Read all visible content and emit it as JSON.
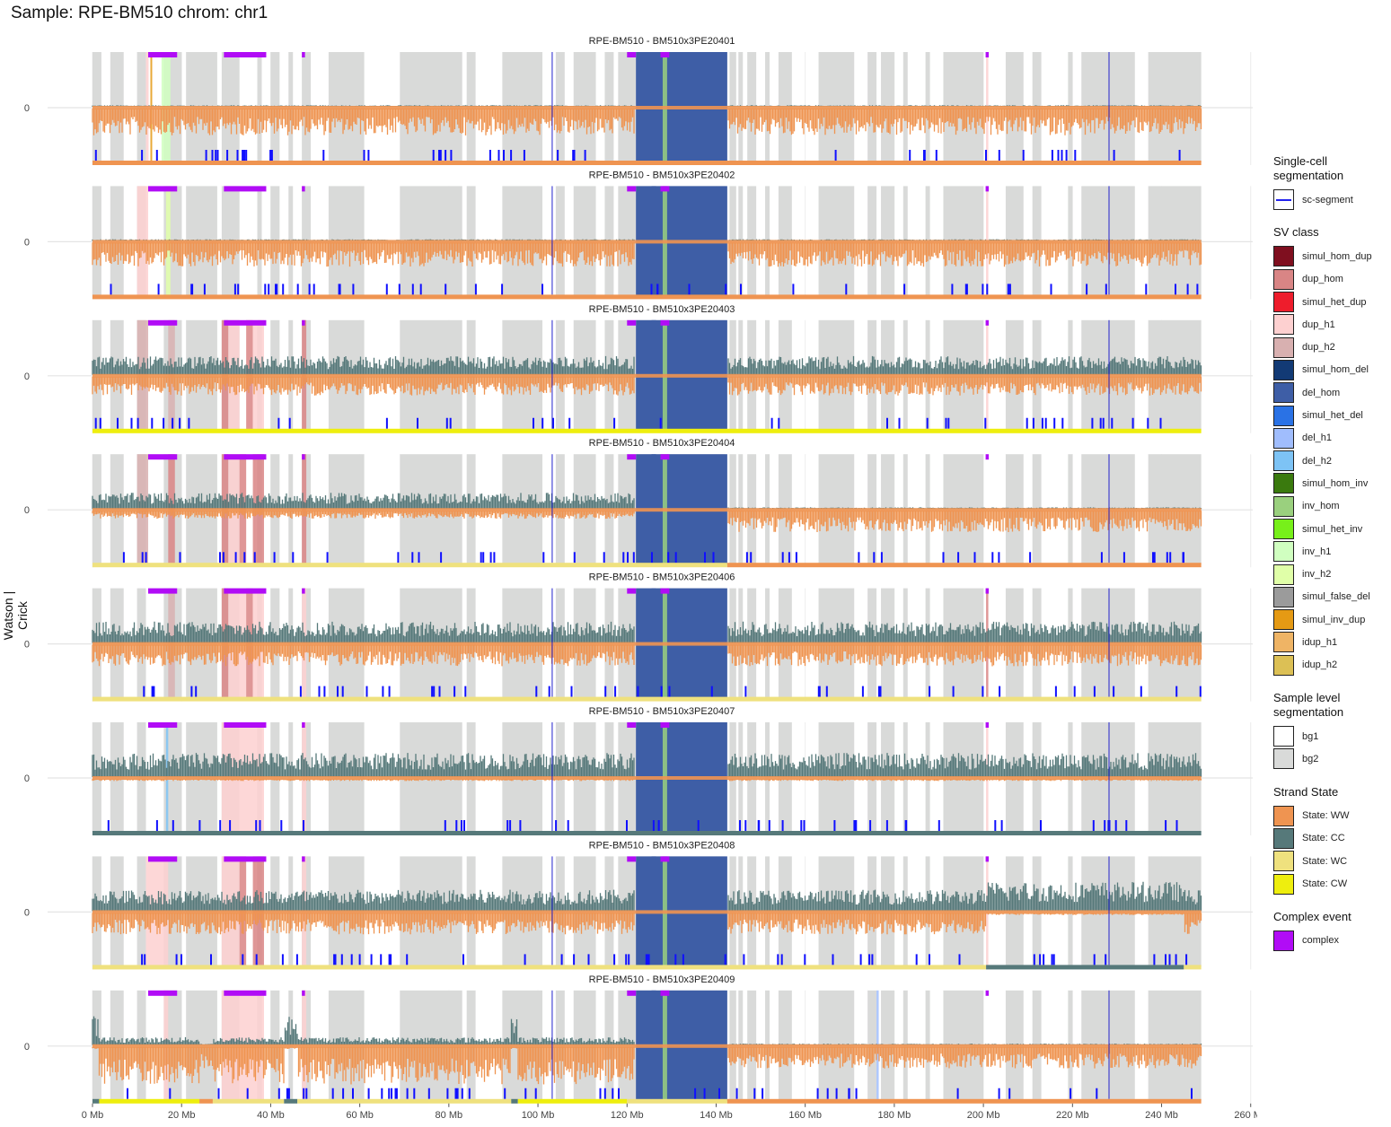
{
  "title": "Sample: RPE-BM510 chrom: chr1",
  "y_axis_label": "Watson | Crick",
  "chart_data": {
    "type": "strandseq-sv-panels",
    "chromosome": "chr1",
    "sample": "RPE-BM510",
    "x_unit": "Mb",
    "xlim": [
      0,
      260
    ],
    "chrom_end": 248.9,
    "x_ticks": [
      0,
      20,
      40,
      60,
      80,
      100,
      120,
      140,
      160,
      180,
      200,
      220,
      240,
      260
    ],
    "x_tick_labels": [
      "0 Mb",
      "20 Mb",
      "40 Mb",
      "60 Mb",
      "80 Mb",
      "100 Mb",
      "120 Mb",
      "140 Mb",
      "160 Mb",
      "180 Mb",
      "200 Mb",
      "220 Mb",
      "240 Mb",
      "260 Mb"
    ],
    "y_tick_labels": [
      "0"
    ],
    "bg_segments": [
      [
        0,
        2
      ],
      [
        4,
        7
      ],
      [
        10,
        12
      ],
      [
        16,
        20
      ],
      [
        21,
        28
      ],
      [
        29,
        33
      ],
      [
        37,
        38
      ],
      [
        40,
        42
      ],
      [
        44,
        45
      ],
      [
        47,
        49
      ],
      [
        53,
        61
      ],
      [
        69,
        83
      ],
      [
        84,
        86
      ],
      [
        92,
        101
      ],
      [
        104,
        106
      ],
      [
        108,
        113
      ],
      [
        115,
        117
      ],
      [
        118,
        142
      ],
      [
        143,
        144.5
      ],
      [
        145,
        146
      ],
      [
        147,
        149
      ],
      [
        151,
        152
      ],
      [
        154,
        157
      ],
      [
        163,
        171
      ],
      [
        174,
        176
      ],
      [
        177,
        180
      ],
      [
        182,
        183
      ],
      [
        187,
        188
      ],
      [
        191,
        200
      ],
      [
        205,
        209
      ],
      [
        211,
        213
      ],
      [
        219,
        220
      ],
      [
        222,
        234
      ],
      [
        237,
        248.9
      ]
    ],
    "sv_class_colors": {
      "simul_hom_dup": "#7f0f1f",
      "dup_hom": "#d98585",
      "simul_het_dup": "#ee1d2c",
      "dup_h1": "#fdd0d0",
      "dup_h2": "#d8b0b0",
      "simul_hom_del": "#123a75",
      "del_hom": "#3e5ea6",
      "simul_het_del": "#2a72e5",
      "del_h1": "#a0bdfd",
      "del_h2": "#7dc3f5",
      "simul_hom_inv": "#3a7a0e",
      "inv_hom": "#9ad07e",
      "simul_het_inv": "#77f01a",
      "inv_h1": "#d0ffc0",
      "inv_h2": "#e0ffa8",
      "simul_false_del": "#9b9b9b",
      "simul_inv_dup": "#e59a14",
      "idup_h1": "#efb465",
      "idup_h2": "#dcc055"
    },
    "strand_state_colors": {
      "WW": "#ef9451",
      "CC": "#56797a",
      "WC": "#efe17e",
      "CW": "#eeee0e"
    },
    "complex_color": "#b10cf6",
    "complex_segments": [
      [
        12.5,
        19
      ],
      [
        29.5,
        39
      ],
      [
        47,
        47.7
      ],
      [
        120,
        122
      ],
      [
        127.5,
        129.5
      ],
      [
        200.5,
        201.2
      ]
    ],
    "global_sv": [
      {
        "cls": "del_hom",
        "start": 122,
        "end": 142.5
      },
      {
        "cls": "del_hom",
        "start": 125.5,
        "end": 126.5
      },
      {
        "cls": "inv_hom",
        "start": 128,
        "end": 129
      }
    ],
    "cells": [
      {
        "title": "RPE-BM510 - BM510x3PE20401",
        "watson": 0.03,
        "crick": 0.5,
        "strand_segments": [
          [
            "WW",
            0,
            248.9
          ]
        ],
        "sv": [
          {
            "cls": "dup_h1",
            "start": 12,
            "end": 12.6
          },
          {
            "cls": "inv_h1",
            "start": 15.5,
            "end": 17.5
          },
          {
            "cls": "simul_inv_dup",
            "start": 13,
            "end": 13.4
          },
          {
            "cls": "dup_h1",
            "start": 200.6,
            "end": 201.1
          }
        ]
      },
      {
        "title": "RPE-BM510 - BM510x3PE20402",
        "watson": 0.03,
        "crick": 0.45,
        "strand_segments": [
          [
            "WW",
            0,
            248.9
          ]
        ],
        "sv": [
          {
            "cls": "dup_h1",
            "start": 10,
            "end": 12.5
          },
          {
            "cls": "inv_h2",
            "start": 16.5,
            "end": 17.5
          },
          {
            "cls": "dup_h1",
            "start": 200.6,
            "end": 201.1
          }
        ]
      },
      {
        "title": "RPE-BM510 - BM510x3PE20403",
        "watson": 0.35,
        "crick": 0.35,
        "strand_segments": [
          [
            "CW",
            0,
            248.9
          ]
        ],
        "sv": [
          {
            "cls": "dup_h2",
            "start": 10,
            "end": 12.5
          },
          {
            "cls": "dup_h2",
            "start": 17,
            "end": 18.5
          },
          {
            "cls": "dup_hom",
            "start": 29,
            "end": 30.5
          },
          {
            "cls": "dup_h1",
            "start": 30.5,
            "end": 33
          },
          {
            "cls": "dup_hom",
            "start": 34.5,
            "end": 36
          },
          {
            "cls": "dup_h1",
            "start": 36,
            "end": 38.5
          },
          {
            "cls": "dup_hom",
            "start": 47,
            "end": 48
          },
          {
            "cls": "dup_h1",
            "start": 200.6,
            "end": 201.1
          }
        ]
      },
      {
        "title": "RPE-BM510 - BM510x3PE20404",
        "watson": 0.3,
        "crick": 0.15,
        "strand_segments": [
          [
            "WC",
            0,
            142.5
          ],
          [
            "WW",
            142.5,
            248.9
          ]
        ],
        "sv": [
          {
            "cls": "dup_h2",
            "start": 10,
            "end": 12.5
          },
          {
            "cls": "dup_hom",
            "start": 17,
            "end": 18.5
          },
          {
            "cls": "dup_hom",
            "start": 29,
            "end": 30.5
          },
          {
            "cls": "dup_h1",
            "start": 30.5,
            "end": 33
          },
          {
            "cls": "dup_hom",
            "start": 33,
            "end": 34.5
          },
          {
            "cls": "dup_hom",
            "start": 36,
            "end": 38.5
          },
          {
            "cls": "dup_hom",
            "start": 47,
            "end": 48
          }
        ]
      },
      {
        "title": "RPE-BM510 - BM510x3PE20406",
        "watson": 0.4,
        "crick": 0.4,
        "strand_segments": [
          [
            "WC",
            0,
            248.9
          ]
        ],
        "sv": [
          {
            "cls": "dup_h2",
            "start": 17,
            "end": 18.5
          },
          {
            "cls": "dup_hom",
            "start": 29,
            "end": 30.5
          },
          {
            "cls": "dup_h1",
            "start": 30.5,
            "end": 34.5
          },
          {
            "cls": "dup_hom",
            "start": 34.5,
            "end": 36
          },
          {
            "cls": "dup_h1",
            "start": 36,
            "end": 38.5
          },
          {
            "cls": "dup_h1",
            "start": 47,
            "end": 48
          },
          {
            "cls": "dup_hom",
            "start": 200.6,
            "end": 201.1
          }
        ]
      },
      {
        "title": "RPE-BM510 - BM510x3PE20407",
        "watson": 0.45,
        "crick": 0.04,
        "strand_segments": [
          [
            "CC",
            0,
            248.9
          ]
        ],
        "sv": [
          {
            "cls": "del_h2",
            "start": 16.5,
            "end": 17
          },
          {
            "cls": "dup_h1",
            "start": 29,
            "end": 38.5
          },
          {
            "cls": "dup_h1",
            "start": 47,
            "end": 48
          },
          {
            "cls": "dup_h1",
            "start": 200.6,
            "end": 201.1
          }
        ]
      },
      {
        "title": "RPE-BM510 - BM510x3PE20408",
        "watson": 0.4,
        "crick": 0.4,
        "strand_segments": [
          [
            "WC",
            0,
            200.6
          ],
          [
            "CC",
            200.6,
            245
          ],
          [
            "WC",
            245,
            248.9
          ]
        ],
        "sv": [
          {
            "cls": "dup_h1",
            "start": 12,
            "end": 17
          },
          {
            "cls": "dup_h1",
            "start": 29,
            "end": 33
          },
          {
            "cls": "dup_hom",
            "start": 33,
            "end": 34.5
          },
          {
            "cls": "dup_hom",
            "start": 36,
            "end": 38.5
          },
          {
            "cls": "dup_h1",
            "start": 47,
            "end": 48
          },
          {
            "cls": "dup_h1",
            "start": 200.6,
            "end": 201.1
          }
        ]
      },
      {
        "title": "RPE-BM510 - BM510x3PE20409",
        "watson": 0.15,
        "crick": 0.7,
        "strand_segments": [
          [
            "CC",
            0,
            1.5
          ],
          [
            "CW",
            1.5,
            24
          ],
          [
            "WW",
            24,
            27
          ],
          [
            "WC",
            27,
            43
          ],
          [
            "CC",
            43,
            46
          ],
          [
            "WC",
            46,
            94
          ],
          [
            "CC",
            94,
            95.5
          ],
          [
            "CW",
            95.5,
            120
          ],
          [
            "WC",
            120,
            142.5
          ],
          [
            "WW",
            142.5,
            248.9
          ]
        ],
        "sv": [
          {
            "cls": "dup_h1",
            "start": 16,
            "end": 17
          },
          {
            "cls": "dup_h1",
            "start": 29,
            "end": 38.5
          },
          {
            "cls": "dup_h1",
            "start": 47,
            "end": 48
          },
          {
            "cls": "del_h1",
            "start": 176,
            "end": 176.5
          }
        ]
      }
    ]
  },
  "legend": {
    "groups": [
      {
        "title": "Single-cell segmentation",
        "items": [
          {
            "label": "sc-segment",
            "kind": "line",
            "color": "#2222ee"
          }
        ]
      },
      {
        "title": "SV class",
        "items": [
          {
            "label": "simul_hom_dup",
            "color": "#7f0f1f"
          },
          {
            "label": "dup_hom",
            "color": "#d98585"
          },
          {
            "label": "simul_het_dup",
            "color": "#ee1d2c"
          },
          {
            "label": "dup_h1",
            "color": "#fdd0d0"
          },
          {
            "label": "dup_h2",
            "color": "#d8b0b0"
          },
          {
            "label": "simul_hom_del",
            "color": "#123a75"
          },
          {
            "label": "del_hom",
            "color": "#3e5ea6"
          },
          {
            "label": "simul_het_del",
            "color": "#2a72e5"
          },
          {
            "label": "del_h1",
            "color": "#a0bdfd"
          },
          {
            "label": "del_h2",
            "color": "#7dc3f5"
          },
          {
            "label": "simul_hom_inv",
            "color": "#3a7a0e"
          },
          {
            "label": "inv_hom",
            "color": "#9ad07e"
          },
          {
            "label": "simul_het_inv",
            "color": "#77f01a"
          },
          {
            "label": "inv_h1",
            "color": "#d0ffc0"
          },
          {
            "label": "inv_h2",
            "color": "#e0ffa8"
          },
          {
            "label": "simul_false_del",
            "color": "#9b9b9b"
          },
          {
            "label": "simul_inv_dup",
            "color": "#e59a14"
          },
          {
            "label": "idup_h1",
            "color": "#efb465"
          },
          {
            "label": "idup_h2",
            "color": "#dcc055"
          }
        ]
      },
      {
        "title": "Sample level segmentation",
        "items": [
          {
            "label": "bg1",
            "color": "#ffffff"
          },
          {
            "label": "bg2",
            "color": "#d9dad9"
          }
        ]
      },
      {
        "title": "Strand State",
        "items": [
          {
            "label": "State: WW",
            "color": "#ef9451"
          },
          {
            "label": "State: CC",
            "color": "#56797a"
          },
          {
            "label": "State: WC",
            "color": "#efe17e"
          },
          {
            "label": "State: CW",
            "color": "#eeee0e"
          }
        ]
      },
      {
        "title": "Complex event",
        "items": [
          {
            "label": "complex",
            "color": "#b10cf6"
          }
        ]
      }
    ]
  }
}
